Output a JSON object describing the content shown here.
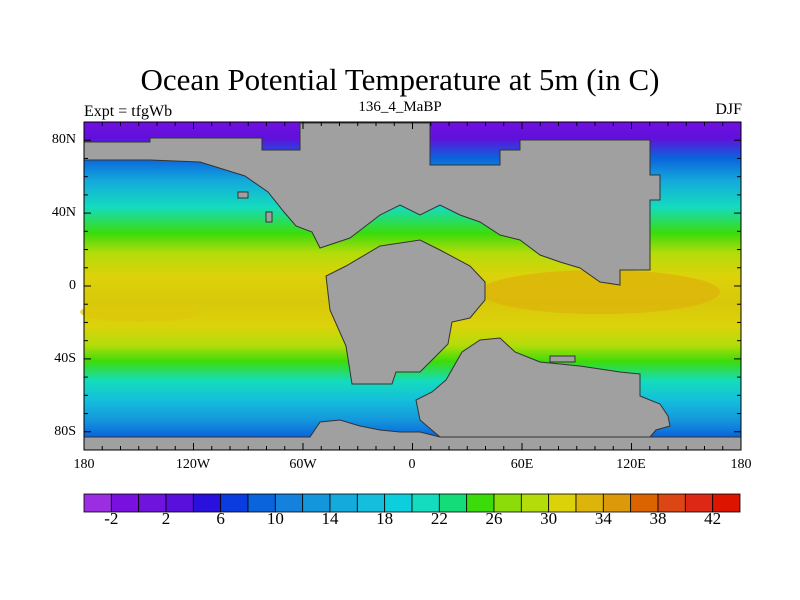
{
  "title": "Ocean Potential Temperature at 5m (in C)",
  "left_string": "Expt = tfgWb",
  "center_string": "136_4_MaBP",
  "right_string": "DJF",
  "map": {
    "lat_labels": [
      "80N",
      "40N",
      "0",
      "40S",
      "80S"
    ],
    "lon_labels": [
      "180",
      "120W",
      "60W",
      "0",
      "60E",
      "120E",
      "180"
    ],
    "land_color": "#a0a0a0"
  },
  "colorbar": {
    "levels_min": -2,
    "levels_max": 42,
    "level_step": 2,
    "labels": [
      "-2",
      "2",
      "6",
      "10",
      "14",
      "18",
      "22",
      "26",
      "30",
      "34",
      "38",
      "42"
    ],
    "colors": [
      "#9a2ee0",
      "#7a10e0",
      "#6e14dc",
      "#5a10dc",
      "#2a10dc",
      "#0a3ce0",
      "#0a64dc",
      "#1482dc",
      "#1496dc",
      "#14aadc",
      "#14bedc",
      "#0ccedc",
      "#14dcbe",
      "#14dc78",
      "#3cdc0a",
      "#8cdc0a",
      "#b4dc0a",
      "#dcd20a",
      "#dcb40a",
      "#dc9a0a",
      "#dc6400",
      "#dc4614",
      "#dc2814",
      "#dc1400"
    ]
  }
}
